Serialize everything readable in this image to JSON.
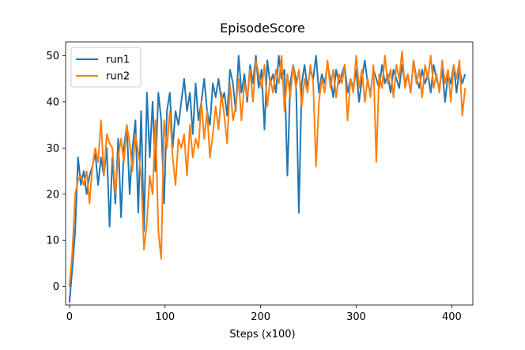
{
  "chart_data": {
    "type": "line",
    "title": "EpisodeScore",
    "xlabel": "Steps (x100)",
    "ylabel": "",
    "xlim": [
      -4,
      422
    ],
    "ylim": [
      -4,
      53
    ],
    "xticks": [
      0,
      100,
      200,
      300,
      400
    ],
    "yticks": [
      0,
      10,
      20,
      30,
      40,
      50
    ],
    "grid": false,
    "legend": "top-left",
    "series": [
      {
        "name": "run1",
        "color": "#1f77b4",
        "x": [
          0,
          3,
          6,
          9,
          12,
          15,
          18,
          21,
          24,
          27,
          30,
          33,
          36,
          39,
          42,
          45,
          48,
          51,
          54,
          57,
          60,
          63,
          66,
          69,
          72,
          75,
          78,
          81,
          84,
          87,
          90,
          93,
          96,
          99,
          102,
          105,
          108,
          111,
          114,
          117,
          120,
          123,
          126,
          129,
          132,
          135,
          138,
          141,
          144,
          147,
          150,
          153,
          156,
          159,
          162,
          165,
          168,
          171,
          174,
          177,
          180,
          183,
          186,
          189,
          192,
          195,
          198,
          201,
          204,
          207,
          210,
          213,
          216,
          219,
          222,
          225,
          228,
          231,
          234,
          237,
          240,
          243,
          246,
          249,
          252,
          255,
          258,
          261,
          264,
          267,
          270,
          273,
          276,
          279,
          282,
          285,
          288,
          291,
          294,
          297,
          300,
          303,
          306,
          309,
          312,
          315,
          318,
          321,
          324,
          327,
          330,
          333,
          336,
          339,
          342,
          345,
          348,
          351,
          354,
          357,
          360,
          363,
          366,
          369,
          372,
          375,
          378,
          381,
          384,
          387,
          390,
          393,
          396,
          399,
          402,
          405,
          408,
          411,
          414
        ],
        "values": [
          -3.5,
          4,
          12,
          28,
          22,
          25,
          20,
          24,
          26,
          29,
          22,
          28,
          24,
          30,
          13,
          28,
          18,
          32,
          15,
          30,
          35,
          20,
          30,
          36,
          16,
          38,
          12,
          42,
          28,
          40,
          25,
          42,
          36,
          18,
          38,
          42,
          30,
          38,
          35,
          40,
          45,
          38,
          42,
          33,
          44,
          36,
          40,
          45,
          38,
          35,
          44,
          41,
          45,
          40,
          42,
          37,
          47,
          44,
          38,
          50,
          42,
          46,
          40,
          48,
          44,
          50,
          43,
          47,
          34,
          49,
          44,
          46,
          42,
          50,
          45,
          47,
          24,
          44,
          48,
          45,
          16,
          44,
          48,
          43,
          47,
          45,
          50,
          42,
          46,
          44,
          48,
          45,
          41,
          47,
          44,
          46,
          48,
          42,
          45,
          43,
          47,
          40,
          45,
          49,
          44,
          42,
          47,
          45,
          43,
          48,
          44,
          46,
          42,
          47,
          45,
          43,
          48,
          44,
          46,
          42,
          49,
          45,
          43,
          47,
          44,
          46,
          42,
          48,
          45,
          43,
          47,
          40,
          46,
          44,
          48,
          42,
          47,
          44,
          46
        ]
      },
      {
        "name": "run2",
        "color": "#ff7f0e",
        "x": [
          0,
          3,
          6,
          9,
          12,
          15,
          18,
          21,
          24,
          27,
          30,
          33,
          36,
          39,
          42,
          45,
          48,
          51,
          54,
          57,
          60,
          63,
          66,
          69,
          72,
          75,
          78,
          81,
          84,
          87,
          90,
          93,
          96,
          99,
          102,
          105,
          108,
          111,
          114,
          117,
          120,
          123,
          126,
          129,
          132,
          135,
          138,
          141,
          144,
          147,
          150,
          153,
          156,
          159,
          162,
          165,
          168,
          171,
          174,
          177,
          180,
          183,
          186,
          189,
          192,
          195,
          198,
          201,
          204,
          207,
          210,
          213,
          216,
          219,
          222,
          225,
          228,
          231,
          234,
          237,
          240,
          243,
          246,
          249,
          252,
          255,
          258,
          261,
          264,
          267,
          270,
          273,
          276,
          279,
          282,
          285,
          288,
          291,
          294,
          297,
          300,
          303,
          306,
          309,
          312,
          315,
          318,
          321,
          324,
          327,
          330,
          333,
          336,
          339,
          342,
          345,
          348,
          351,
          354,
          357,
          360,
          363,
          366,
          369,
          372,
          375,
          378,
          381,
          384,
          387,
          390,
          393,
          396,
          399,
          402,
          405,
          408,
          411,
          414
        ],
        "values": [
          0,
          7.5,
          20,
          23,
          24,
          22,
          25,
          18,
          26,
          30,
          27,
          36,
          24,
          33,
          31,
          30,
          20,
          28,
          32,
          27,
          35,
          31,
          25,
          33,
          29,
          24,
          8,
          14,
          24,
          20,
          36,
          12,
          6,
          36,
          30,
          38,
          28,
          22,
          32,
          30,
          33,
          24,
          35,
          28,
          32,
          30,
          40,
          32,
          38,
          28,
          33,
          39,
          34,
          42,
          37,
          31,
          44,
          36,
          39,
          45,
          36,
          44,
          41,
          47,
          40,
          49,
          46,
          43,
          48,
          39,
          45,
          42,
          47,
          44,
          50,
          38,
          46,
          41,
          48,
          43,
          47,
          39,
          45,
          42,
          48,
          44,
          26,
          40,
          45,
          42,
          49,
          43,
          47,
          41,
          46,
          44,
          48,
          36,
          45,
          42,
          50,
          43,
          47,
          40,
          45,
          41,
          48,
          27,
          46,
          43,
          50,
          44,
          47,
          41,
          48,
          45,
          51,
          43,
          46,
          42,
          49,
          44,
          47,
          41,
          48,
          45,
          50,
          43,
          46,
          42,
          49,
          44,
          47,
          40,
          48,
          45,
          49,
          37,
          43
        ]
      }
    ]
  }
}
